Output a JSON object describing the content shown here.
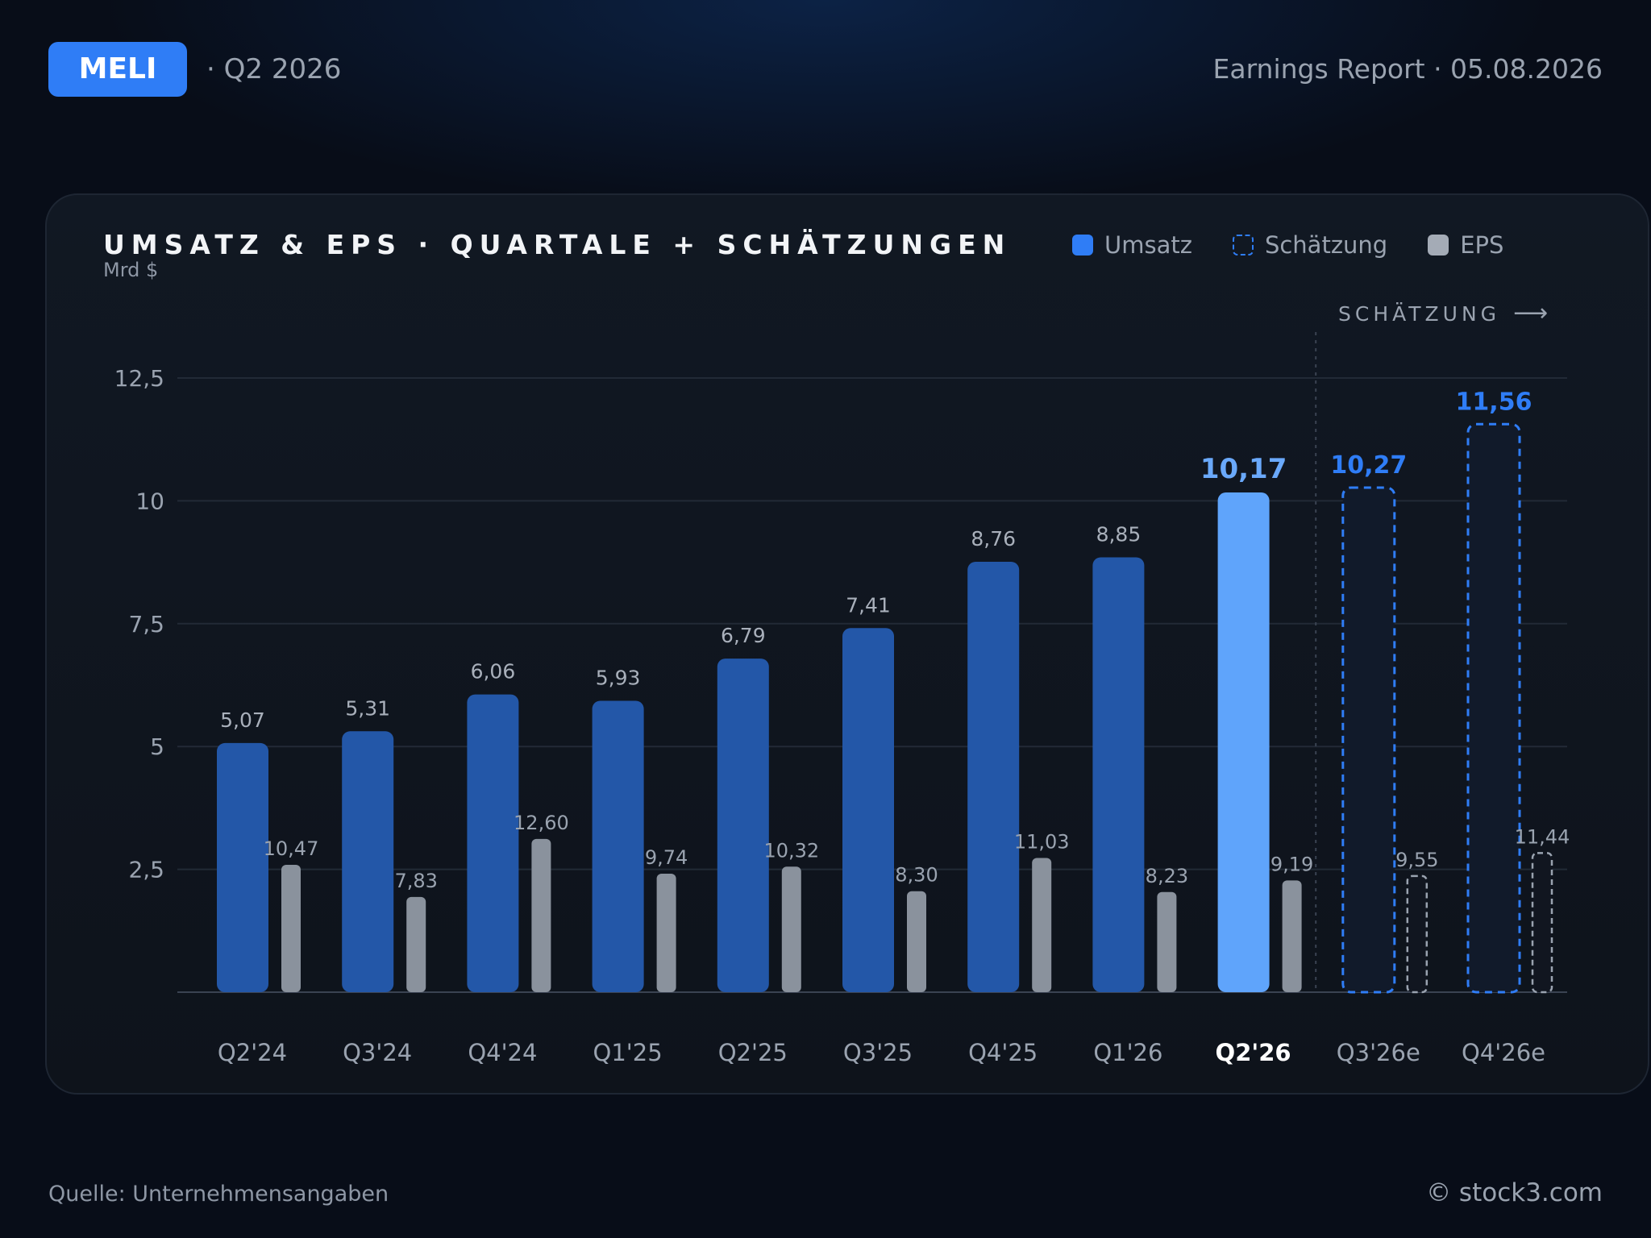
{
  "header": {
    "ticker": "MELI",
    "quarter": "· Q2 2026",
    "report": "Earnings Report · 05.08.2026"
  },
  "chart_title": "UMSATZ & EPS · QUARTALE + SCHÄTZUNGEN",
  "chart_subtitle": "Mrd $",
  "legend": {
    "revenue": "Umsatz",
    "estimate": "Schätzung",
    "eps": "EPS"
  },
  "estimate_marker": "SCHÄTZUNG",
  "footer": {
    "source": "Quelle: Unternehmensangaben",
    "copyright": "© stock3.com"
  },
  "colors": {
    "revenue": "#2357a8",
    "revenue_current": "#5fa4fb",
    "estimate": "#2f7df6",
    "eps": "#8a929d",
    "eps_estimate": "#9aa3b0"
  },
  "chart_data": {
    "type": "bar",
    "title": "UMSATZ & EPS · QUARTALE + SCHÄTZUNGEN",
    "ylabel": "Mrd $",
    "ylim": [
      0,
      12.5
    ],
    "yticks": [
      2.5,
      5,
      7.5,
      10,
      12.5
    ],
    "ytick_labels": [
      "2,5",
      "5",
      "7,5",
      "10",
      "12,5"
    ],
    "grid": true,
    "legend_position": "top-right",
    "categories": [
      "Q2'24",
      "Q3'24",
      "Q4'24",
      "Q1'25",
      "Q2'25",
      "Q3'25",
      "Q4'25",
      "Q1'26",
      "Q2'26",
      "Q3'26e",
      "Q4'26e"
    ],
    "current_index": 8,
    "estimate_from_index": 9,
    "series": [
      {
        "name": "Umsatz",
        "values": [
          5.07,
          5.31,
          6.06,
          5.93,
          6.79,
          7.41,
          8.76,
          8.85,
          10.17,
          10.27,
          11.56
        ],
        "labels": [
          "5,07",
          "5,31",
          "6,06",
          "5,93",
          "6,79",
          "7,41",
          "8,76",
          "8,85",
          "10,17",
          "10,27",
          "11,56"
        ]
      },
      {
        "name": "EPS",
        "values": [
          10.47,
          7.83,
          12.6,
          9.74,
          10.32,
          8.3,
          11.03,
          8.23,
          9.19,
          9.55,
          11.44
        ],
        "labels": [
          "10,47",
          "7,83",
          "12,60",
          "9,74",
          "10,32",
          "8,30",
          "11,03",
          "8,23",
          "9,19",
          "9,55",
          "11,44"
        ],
        "axis_max": 50
      }
    ]
  }
}
